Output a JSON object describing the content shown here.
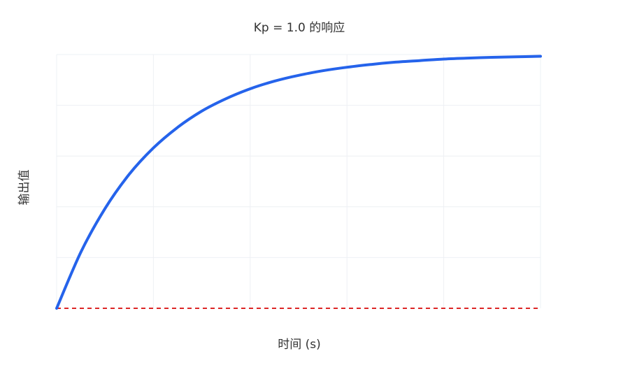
{
  "chart_data": {
    "type": "line",
    "title": "Kp = 1.0 的响应",
    "xlabel": "时间 (s)",
    "ylabel": "输出值",
    "xlim": [
      0,
      5
    ],
    "ylim": [
      0,
      1
    ],
    "grid": true,
    "tick_labels_shown": false,
    "series": [
      {
        "color": "#2563eb",
        "style": "solid",
        "x": [
          0,
          0.25,
          0.5,
          0.75,
          1.0,
          1.25,
          1.5,
          1.75,
          2.0,
          2.25,
          2.5,
          2.75,
          3.0,
          3.25,
          3.5,
          3.75,
          4.0,
          4.25,
          4.5,
          4.75,
          5.0
        ],
        "y": [
          0,
          0.221,
          0.393,
          0.528,
          0.632,
          0.713,
          0.777,
          0.826,
          0.865,
          0.895,
          0.918,
          0.936,
          0.95,
          0.961,
          0.97,
          0.976,
          0.982,
          0.986,
          0.989,
          0.991,
          0.993
        ]
      },
      {
        "color": "#dc2626",
        "style": "dashed",
        "x": [
          0,
          5
        ],
        "y": [
          0,
          0
        ]
      }
    ]
  }
}
